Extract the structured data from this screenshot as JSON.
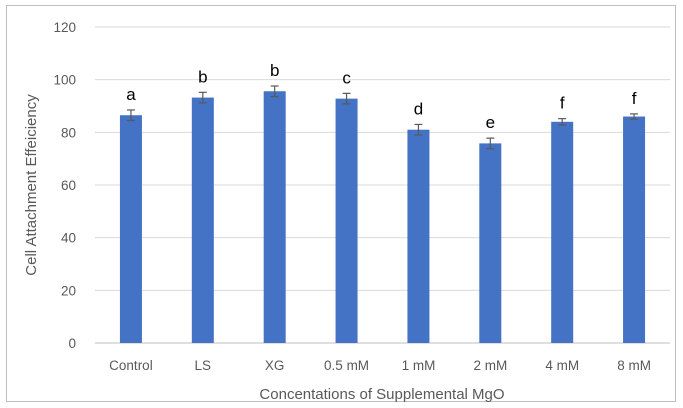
{
  "chart_data": {
    "type": "bar",
    "categories": [
      "Control",
      "LS",
      "XG",
      "0.5 mM",
      "1 mM",
      "2 mM",
      "4 mM",
      "8 mM"
    ],
    "values": [
      86.5,
      93.2,
      95.6,
      92.8,
      81.0,
      75.8,
      84.0,
      86.0
    ],
    "error": [
      2.0,
      2.0,
      2.0,
      2.0,
      2.0,
      2.0,
      1.2,
      1.0
    ],
    "labels": [
      "a",
      "b",
      "b",
      "c",
      "d",
      "e",
      "f",
      "f"
    ],
    "xlabel": "Concentations of Supplemental MgO",
    "ylabel": "Cell Attachment Effeiciency",
    "ylim": [
      0,
      120
    ],
    "yticks": [
      "0",
      "20",
      "40",
      "60",
      "80",
      "100",
      "120"
    ],
    "grid": true,
    "bar_color": "#4472c4",
    "grid_color": "#d9d9d9",
    "error_color": "#595959"
  }
}
